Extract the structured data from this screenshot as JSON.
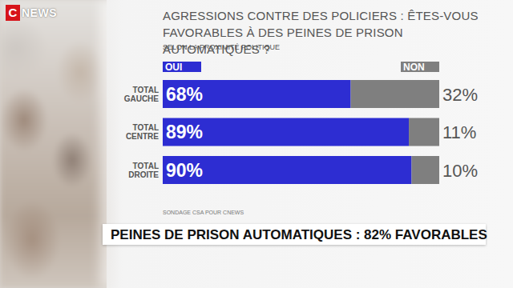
{
  "logo": {
    "mark": "C",
    "text": "NEWS"
  },
  "banner": "PEINES DE PRISON AUTOMATIQUES : 82% FAVORABLES",
  "chart_data": {
    "type": "bar",
    "orientation": "horizontal",
    "stacked": true,
    "data_labels": true,
    "legend": "top",
    "tick_labels": "y",
    "grid": false,
    "title": "AGRESSIONS CONTRE DES POLICIERS : ÊTES-VOUS FAVORABLES À DES PEINES DE PRISON AUTOMATIQUES ?",
    "subtitle": "SELON LA PROXIMITÉ POLITIQUE",
    "source": "SONDAGE CSA POUR CNEWS",
    "categories": [
      "TOTAL GAUCHE",
      "TOTAL CENTRE",
      "TOTAL DROITE"
    ],
    "xlim": [
      0,
      100
    ],
    "series": [
      {
        "name": "OUI",
        "color": "#2d2dd2",
        "values": [
          68,
          89,
          90
        ],
        "value_labels": [
          "68%",
          "89%",
          "90%"
        ]
      },
      {
        "name": "NON",
        "color": "#7f7f7f",
        "values": [
          32,
          11,
          10
        ],
        "value_labels": [
          "32%",
          "11%",
          "10%"
        ]
      }
    ]
  }
}
